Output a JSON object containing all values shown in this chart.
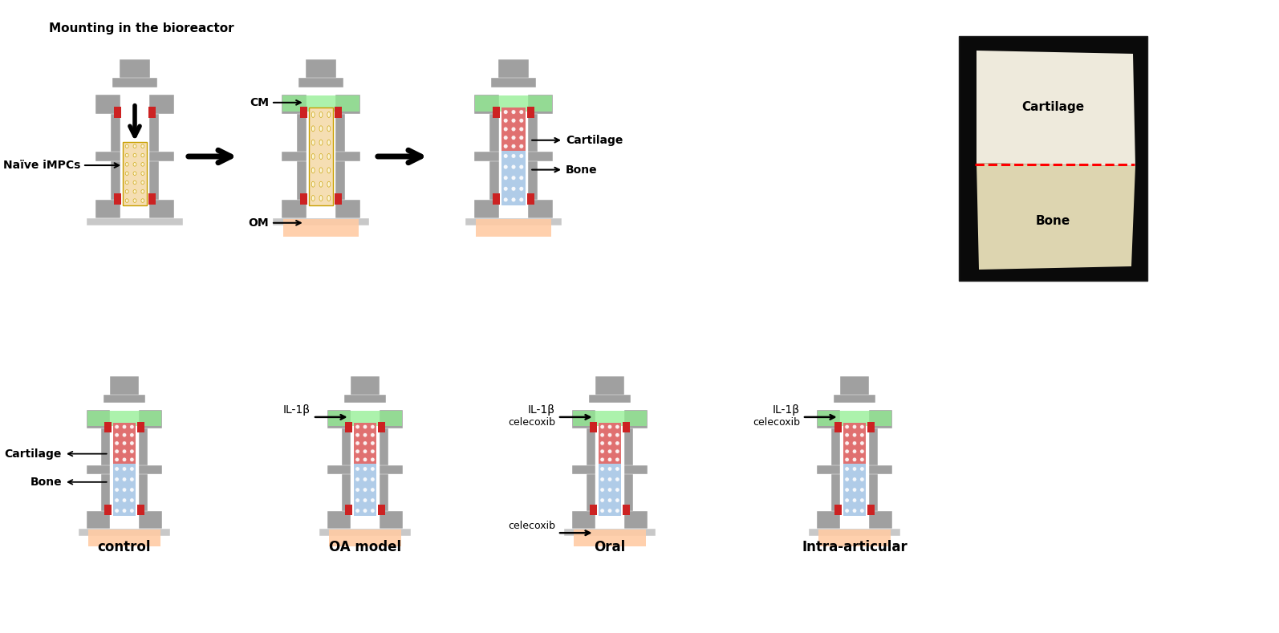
{
  "colors": {
    "gray": "#A0A0A0",
    "gray_light": "#C8C8C8",
    "gray_dark": "#787878",
    "red": "#CC2222",
    "green": "#90EE90",
    "peach": "#FFCBA4",
    "orange_tissue": "#F5DEB3",
    "red_tissue": "#E07070",
    "blue_tissue": "#B0CCE8",
    "white": "#FFFFFF",
    "black": "#000000",
    "background": "#FFFFFF",
    "photo_bg": "#111111",
    "cart_color": "#EDE8D0",
    "bone_color": "#DDD0A0"
  },
  "labels": {
    "mounting": "Mounting in the bioreactor",
    "naive": "Naïve iMPCs",
    "cm": "CM",
    "om": "OM",
    "cartilage": "Cartilage",
    "bone": "Bone",
    "control": "control",
    "oa_model": "OA model",
    "oral": "Oral",
    "intra": "Intra-articular",
    "il1b": "IL-1β",
    "celecoxib": "celecoxib"
  }
}
